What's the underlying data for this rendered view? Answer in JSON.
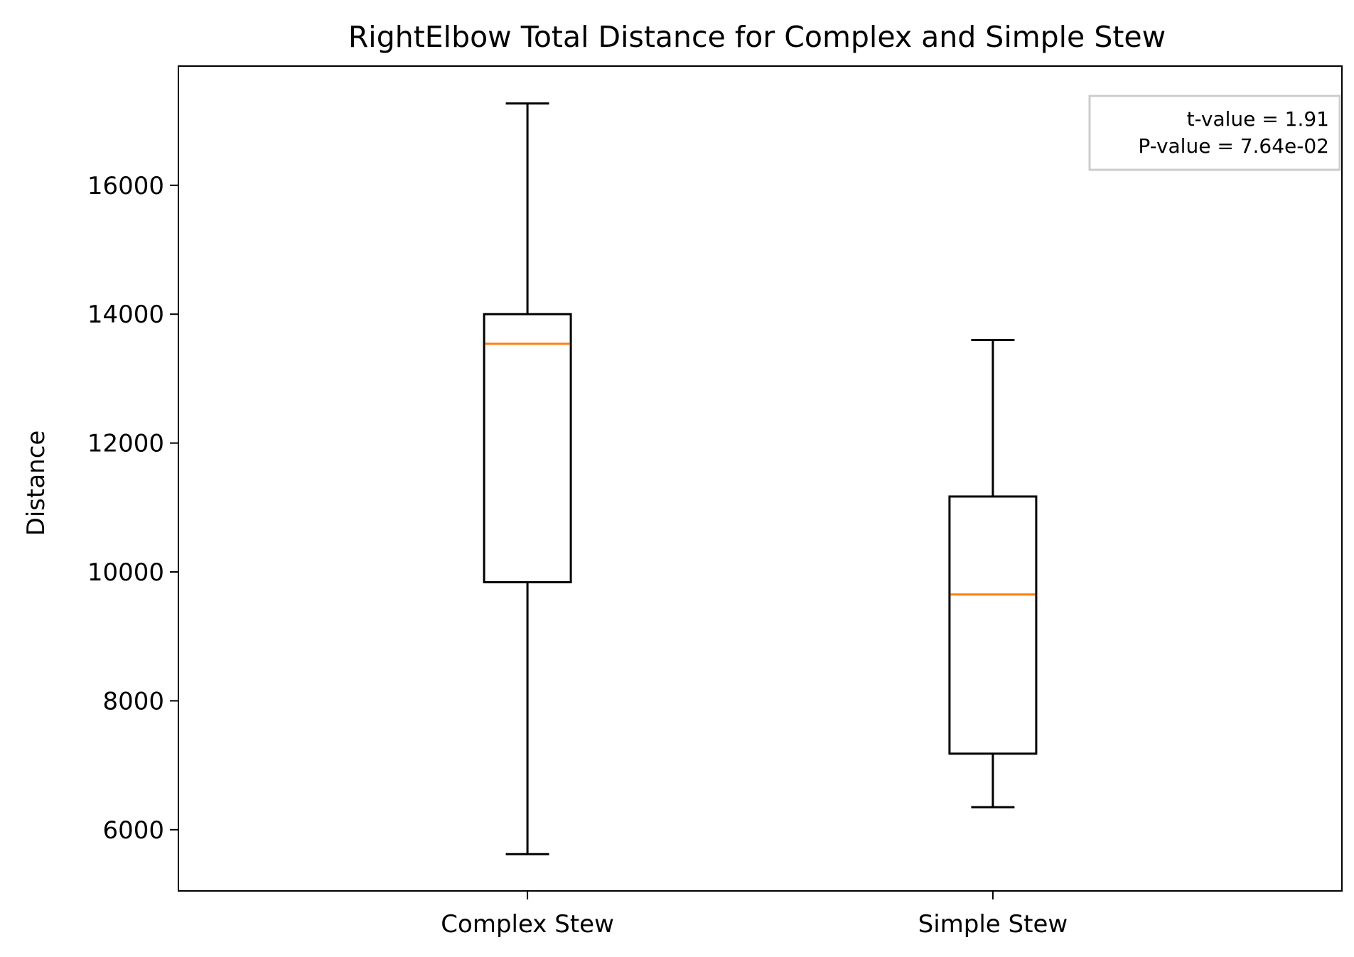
{
  "chart_data": {
    "type": "boxplot",
    "title": "RightElbow Total Distance for Complex and Simple Stew",
    "xlabel": "",
    "ylabel": "Distance",
    "ylim": [
      5050,
      17850
    ],
    "yticks": [
      6000,
      8000,
      10000,
      12000,
      14000,
      16000
    ],
    "ytick_labels": [
      "6000",
      "8000",
      "10000",
      "12000",
      "14000",
      "16000"
    ],
    "categories": [
      "Complex Stew",
      "Simple Stew"
    ],
    "boxes": [
      {
        "category": "Complex Stew",
        "whisker_low": 5620,
        "q1": 9840,
        "median": 13540,
        "q3": 14000,
        "whisker_high": 17270
      },
      {
        "category": "Simple Stew",
        "whisker_low": 6350,
        "q1": 7180,
        "median": 9650,
        "q3": 11170,
        "whisker_high": 13600
      }
    ],
    "annotation": {
      "lines": [
        "t-value = 1.91",
        "P-value = 7.64e-02"
      ],
      "placement": "top-right"
    },
    "grid": false,
    "colors": {
      "box": "#000000",
      "median": "#ff7f0e",
      "whisker": "#000000",
      "annotation_border": "#cccccc"
    }
  }
}
